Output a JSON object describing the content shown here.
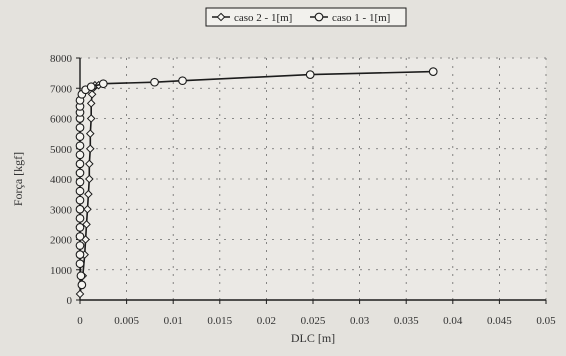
{
  "chart_data": {
    "type": "line",
    "xlabel": "DLC [m]",
    "ylabel": "Força [kgf]",
    "xlim": [
      0,
      0.05
    ],
    "ylim": [
      0,
      8000
    ],
    "x_ticks": [
      "0",
      "0.005",
      "0.01",
      "0.015",
      "0.02",
      "0.025",
      "0.03",
      "0.035",
      "0.04",
      "0.045",
      "0.05"
    ],
    "y_ticks": [
      "0",
      "1000",
      "2000",
      "3000",
      "4000",
      "5000",
      "6000",
      "7000",
      "8000"
    ],
    "grid": true,
    "legend_position": "top",
    "series": [
      {
        "name": "caso 2 - 1[m]",
        "marker": "diamond",
        "x": [
          0.0,
          0.0003,
          0.0005,
          0.0006,
          0.0007,
          0.0008,
          0.0009,
          0.001,
          0.001,
          0.0011,
          0.0011,
          0.0012,
          0.0012,
          0.0013,
          0.0014,
          0.0016,
          0.002
        ],
        "y": [
          200,
          800,
          1500,
          2000,
          2500,
          3000,
          3500,
          4000,
          4500,
          5000,
          5500,
          6000,
          6500,
          6800,
          7000,
          7100,
          7100
        ]
      },
      {
        "name": "caso 1 - 1[m]",
        "marker": "circle",
        "x": [
          0.0002,
          0.0001,
          0.0,
          0.0,
          0.0,
          0.0,
          0.0,
          0.0,
          0.0,
          0.0,
          0.0,
          0.0,
          0.0,
          0.0,
          0.0,
          0.0,
          0.0,
          0.0,
          0.0,
          0.0,
          0.0,
          0.0,
          0.0002,
          0.0006,
          0.0012,
          0.0025,
          0.008,
          0.011,
          0.0247,
          0.0379
        ],
        "y": [
          500,
          800,
          1200,
          1500,
          1800,
          2100,
          2400,
          2700,
          3000,
          3300,
          3600,
          3900,
          4200,
          4500,
          4800,
          5100,
          5400,
          5700,
          6000,
          6200,
          6400,
          6600,
          6800,
          6950,
          7050,
          7150,
          7200,
          7250,
          7450,
          7550
        ]
      }
    ]
  },
  "colors": {
    "line": "#1c1c1c",
    "marker_fill": "#f6f5f1",
    "grid": "#6a6a6a",
    "background": "#e4e2dd",
    "plot_background": "#ebe9e5"
  }
}
